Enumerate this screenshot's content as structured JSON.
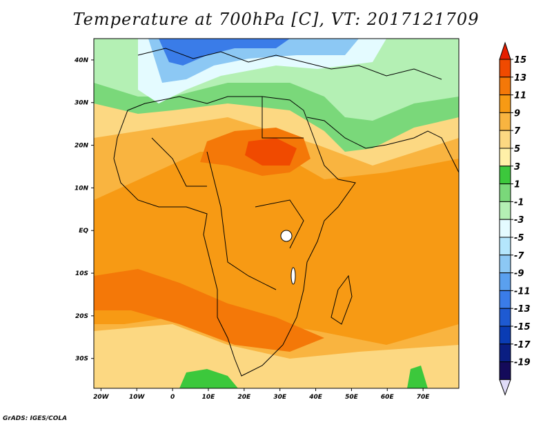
{
  "title": "Temperature at 700hPa [C], VT: 2017121709",
  "footer": "GrADS: IGES/COLA",
  "map": {
    "lat_labels": [
      "40N",
      "30N",
      "20N",
      "10N",
      "EQ",
      "10S",
      "20S",
      "30S"
    ],
    "lon_labels": [
      "20W",
      "10W",
      "0",
      "10E",
      "20E",
      "30E",
      "40E",
      "50E",
      "60E",
      "70E"
    ],
    "lat_values": [
      40,
      30,
      20,
      10,
      0,
      -10,
      -20,
      -30
    ],
    "lon_values": [
      -20,
      -10,
      0,
      10,
      20,
      30,
      40,
      50,
      60,
      70
    ],
    "lon_range": [
      -22,
      80
    ],
    "lat_range": [
      -37,
      45
    ]
  },
  "colorbar": {
    "labels": [
      "15",
      "13",
      "11",
      "9",
      "7",
      "5",
      "3",
      "1",
      "-1",
      "-3",
      "-5",
      "-7",
      "-9",
      "-11",
      "-13",
      "-15",
      "-17",
      "-19"
    ],
    "colors": [
      "#e61e00",
      "#f04a00",
      "#f47808",
      "#f79a14",
      "#f9b440",
      "#fcd882",
      "#fff0a8",
      "#3cc83c",
      "#7ad87a",
      "#b4f0b4",
      "#e4fbff",
      "#b4e6fc",
      "#8cc8f4",
      "#5aa0ef",
      "#3a7ce8",
      "#1e5ad2",
      "#0a3cb4",
      "#0a1e82",
      "#140a5a"
    ],
    "top_color": "#e61e00",
    "bottom_color": "#e0dcf8"
  }
}
